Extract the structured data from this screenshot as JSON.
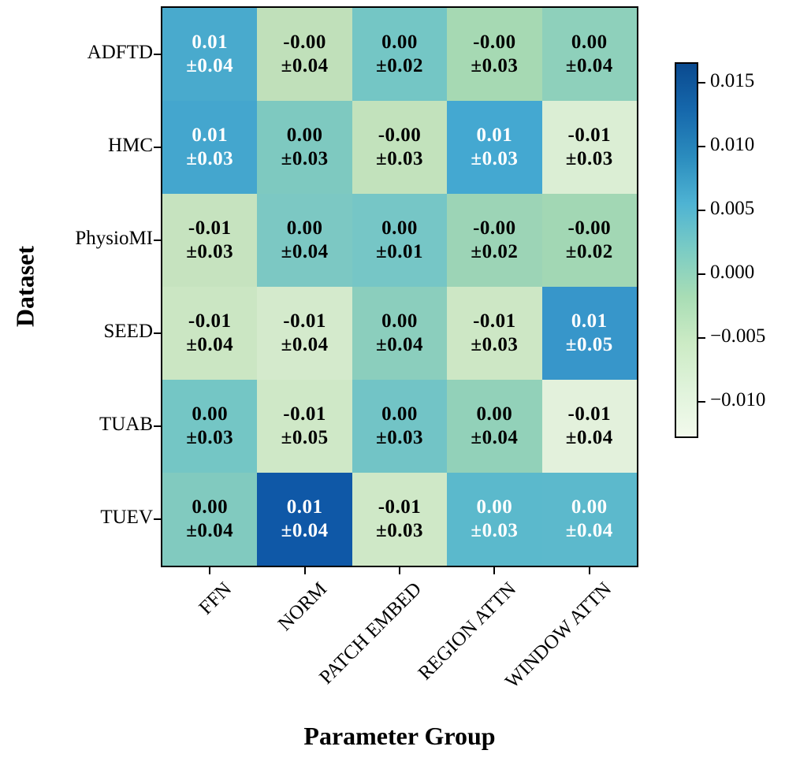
{
  "chart_data": {
    "type": "heatmap",
    "xlabel": "Parameter Group",
    "ylabel": "Dataset",
    "x_categories": [
      "FFN",
      "NORM",
      "PATCH EMBED",
      "REGION ATTN",
      "WINDOW ATTN"
    ],
    "y_categories": [
      "ADFTD",
      "HMC",
      "PhysioMI",
      "SEED",
      "TUAB",
      "TUEV"
    ],
    "cells": [
      [
        {
          "mean": "0.01",
          "std": "±0.04",
          "bg": "#49aacd",
          "fg": "#ffffff"
        },
        {
          "mean": "-0.00",
          "std": "±0.04",
          "bg": "#c0e0ba",
          "fg": "#000000"
        },
        {
          "mean": "0.00",
          "std": "±0.02",
          "bg": "#74c6c5",
          "fg": "#000000"
        },
        {
          "mean": "-0.00",
          "std": "±0.03",
          "bg": "#a6d9b3",
          "fg": "#000000"
        },
        {
          "mean": "0.00",
          "std": "±0.04",
          "bg": "#8ed0bb",
          "fg": "#000000"
        }
      ],
      [
        {
          "mean": "0.01",
          "std": "±0.03",
          "bg": "#44a6ce",
          "fg": "#ffffff"
        },
        {
          "mean": "0.00",
          "std": "±0.03",
          "bg": "#7ec9c0",
          "fg": "#000000"
        },
        {
          "mean": "-0.00",
          "std": "±0.03",
          "bg": "#c2e2bc",
          "fg": "#000000"
        },
        {
          "mean": "0.01",
          "std": "±0.03",
          "bg": "#44a8d1",
          "fg": "#ffffff"
        },
        {
          "mean": "-0.01",
          "std": "±0.03",
          "bg": "#dbeed4",
          "fg": "#000000"
        }
      ],
      [
        {
          "mean": "-0.01",
          "std": "±0.03",
          "bg": "#c6e3bf",
          "fg": "#000000"
        },
        {
          "mean": "0.00",
          "std": "±0.04",
          "bg": "#7cc8c3",
          "fg": "#000000"
        },
        {
          "mean": "0.00",
          "std": "±0.01",
          "bg": "#76c6c6",
          "fg": "#000000"
        },
        {
          "mean": "-0.00",
          "std": "±0.02",
          "bg": "#9cd4b6",
          "fg": "#000000"
        },
        {
          "mean": "-0.00",
          "std": "±0.02",
          "bg": "#a2d7b4",
          "fg": "#000000"
        }
      ],
      [
        {
          "mean": "-0.01",
          "std": "±0.04",
          "bg": "#cbe6c3",
          "fg": "#000000"
        },
        {
          "mean": "-0.01",
          "std": "±0.04",
          "bg": "#d4eacc",
          "fg": "#000000"
        },
        {
          "mean": "0.00",
          "std": "±0.04",
          "bg": "#8bcebd",
          "fg": "#000000"
        },
        {
          "mean": "-0.01",
          "std": "±0.03",
          "bg": "#cde7c5",
          "fg": "#000000"
        },
        {
          "mean": "0.01",
          "std": "±0.05",
          "bg": "#3796ca",
          "fg": "#ffffff"
        }
      ],
      [
        {
          "mean": "0.00",
          "std": "±0.03",
          "bg": "#74c6c5",
          "fg": "#000000"
        },
        {
          "mean": "-0.01",
          "std": "±0.05",
          "bg": "#cfe8c7",
          "fg": "#000000"
        },
        {
          "mean": "0.00",
          "std": "±0.03",
          "bg": "#72c4c6",
          "fg": "#000000"
        },
        {
          "mean": "0.00",
          "std": "±0.04",
          "bg": "#92d1b9",
          "fg": "#000000"
        },
        {
          "mean": "-0.01",
          "std": "±0.04",
          "bg": "#e3f1dc",
          "fg": "#000000"
        }
      ],
      [
        {
          "mean": "0.00",
          "std": "±0.04",
          "bg": "#81cabf",
          "fg": "#000000"
        },
        {
          "mean": "0.01",
          "std": "±0.04",
          "bg": "#0f58a7",
          "fg": "#ffffff"
        },
        {
          "mean": "-0.01",
          "std": "±0.03",
          "bg": "#cfe8c7",
          "fg": "#000000"
        },
        {
          "mean": "0.00",
          "std": "±0.03",
          "bg": "#5bb9cc",
          "fg": "#ffffff"
        },
        {
          "mean": "0.00",
          "std": "±0.04",
          "bg": "#5cb9cc",
          "fg": "#ffffff"
        }
      ]
    ],
    "colorbar": {
      "vmin": -0.0127,
      "vmax": 0.0165,
      "tick_values": [
        0.015,
        0.01,
        0.005,
        0.0,
        -0.005,
        -0.01
      ],
      "tick_labels": [
        "0.015",
        "0.010",
        "0.005",
        "0.000",
        "−0.005",
        "−0.010"
      ],
      "gradient_stops": [
        "#0a4a8f",
        "#1668ac",
        "#2b8cbe",
        "#4eb3d3",
        "#7bccc4",
        "#a8ddb5",
        "#ccebc5",
        "#e0f3db",
        "#f2faec"
      ]
    },
    "layout": {
      "grid": "off",
      "legend": "colorbar-right",
      "axis_color": "#000000"
    }
  }
}
